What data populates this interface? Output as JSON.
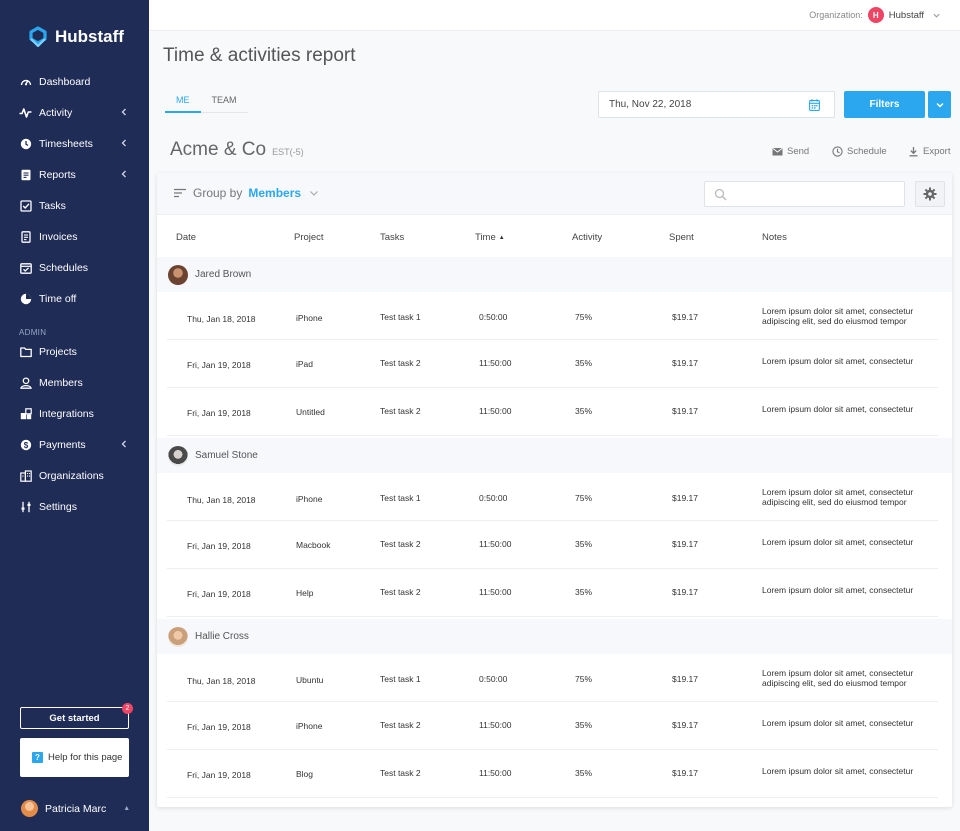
{
  "sidebar": {
    "brand": "Hubstaff",
    "nav": [
      {
        "label": "Dashboard",
        "icon": "dashboard-icon",
        "chevron": false
      },
      {
        "label": "Activity",
        "icon": "activity-icon",
        "chevron": true
      },
      {
        "label": "Timesheets",
        "icon": "clock-icon",
        "chevron": true
      },
      {
        "label": "Reports",
        "icon": "report-icon",
        "chevron": true
      },
      {
        "label": "Tasks",
        "icon": "checkbox-icon",
        "chevron": false
      },
      {
        "label": "Invoices",
        "icon": "invoice-icon",
        "chevron": false
      },
      {
        "label": "Schedules",
        "icon": "calendar-check-icon",
        "chevron": false
      },
      {
        "label": "Time off",
        "icon": "pie-icon",
        "chevron": false
      }
    ],
    "admin_label": "ADMIN",
    "admin_nav": [
      {
        "label": "Projects",
        "icon": "folder-icon",
        "chevron": false
      },
      {
        "label": "Members",
        "icon": "user-icon",
        "chevron": false
      },
      {
        "label": "Integrations",
        "icon": "puzzle-icon",
        "chevron": false
      },
      {
        "label": "Payments",
        "icon": "dollar-icon",
        "chevron": true
      },
      {
        "label": "Organizations",
        "icon": "building-icon",
        "chevron": false
      },
      {
        "label": "Settings",
        "icon": "sliders-icon",
        "chevron": false
      }
    ],
    "get_started": "Get started",
    "get_started_badge": "2",
    "help": "Help for this page",
    "help_icon": "?",
    "user_name": "Patricia Marc"
  },
  "topbar": {
    "org_label": "Organization:",
    "org_initial": "H",
    "org_name": "Hubstaff"
  },
  "page": {
    "title": "Time & activities report",
    "tabs": [
      "ME",
      "TEAM"
    ],
    "active_tab": "ME",
    "date": "Thu, Nov 22, 2018",
    "filters": "Filters",
    "company": "Acme & Co",
    "timezone": "EST(-5)",
    "actions": {
      "send": "Send",
      "schedule": "Schedule",
      "export": "Export"
    }
  },
  "table": {
    "group_by_label": "Group by",
    "group_by_value": "Members",
    "search_placeholder": "",
    "columns": [
      "Date",
      "Project",
      "Tasks",
      "Time",
      "Activity",
      "Spent",
      "Notes"
    ],
    "sorted_column": "Time",
    "groups": [
      {
        "member": "Jared Brown",
        "rows": [
          {
            "date": "Thu, Jan 18, 2018",
            "project": "iPhone",
            "task": "Test task 1",
            "time": "0:50:00",
            "activity": "75%",
            "spent": "$19.17",
            "notes": "Lorem ipsum dolor sit amet, consectetur adipiscing elit, sed do eiusmod tempor"
          },
          {
            "date": "Fri, Jan 19, 2018",
            "project": "iPad",
            "task": "Test task 2",
            "time": "11:50:00",
            "activity": "35%",
            "spent": "$19.17",
            "notes": "Lorem ipsum dolor sit amet, consectetur"
          },
          {
            "date": "Fri, Jan 19, 2018",
            "project": "Untitled",
            "task": "Test task 2",
            "time": "11:50:00",
            "activity": "35%",
            "spent": "$19.17",
            "notes": "Lorem ipsum dolor sit amet, consectetur"
          }
        ]
      },
      {
        "member": "Samuel Stone",
        "rows": [
          {
            "date": "Thu, Jan 18, 2018",
            "project": "iPhone",
            "task": "Test task 1",
            "time": "0:50:00",
            "activity": "75%",
            "spent": "$19.17",
            "notes": "Lorem ipsum dolor sit amet, consectetur adipiscing elit, sed do eiusmod tempor"
          },
          {
            "date": "Fri, Jan 19, 2018",
            "project": "Macbook",
            "task": "Test task 2",
            "time": "11:50:00",
            "activity": "35%",
            "spent": "$19.17",
            "notes": "Lorem ipsum dolor sit amet, consectetur"
          },
          {
            "date": "Fri, Jan 19, 2018",
            "project": "Help",
            "task": "Test task 2",
            "time": "11:50:00",
            "activity": "35%",
            "spent": "$19.17",
            "notes": "Lorem ipsum dolor sit amet, consectetur"
          }
        ]
      },
      {
        "member": "Hallie Cross",
        "rows": [
          {
            "date": "Thu, Jan 18, 2018",
            "project": "Ubuntu",
            "task": "Test task 1",
            "time": "0:50:00",
            "activity": "75%",
            "spent": "$19.17",
            "notes": "Lorem ipsum dolor sit amet, consectetur adipiscing elit, sed do eiusmod tempor"
          },
          {
            "date": "Fri, Jan 19, 2018",
            "project": "iPhone",
            "task": "Test task 2",
            "time": "11:50:00",
            "activity": "35%",
            "spent": "$19.17",
            "notes": "Lorem ipsum dolor sit amet, consectetur"
          },
          {
            "date": "Fri, Jan 19, 2018",
            "project": "Blog",
            "task": "Test task 2",
            "time": "11:50:00",
            "activity": "35%",
            "spent": "$19.17",
            "notes": "Lorem ipsum dolor sit amet, consectetur"
          }
        ]
      }
    ]
  },
  "colors": {
    "sidebar": "#1f2c56",
    "accent": "#2aa7ef",
    "badge": "#ef4565"
  }
}
